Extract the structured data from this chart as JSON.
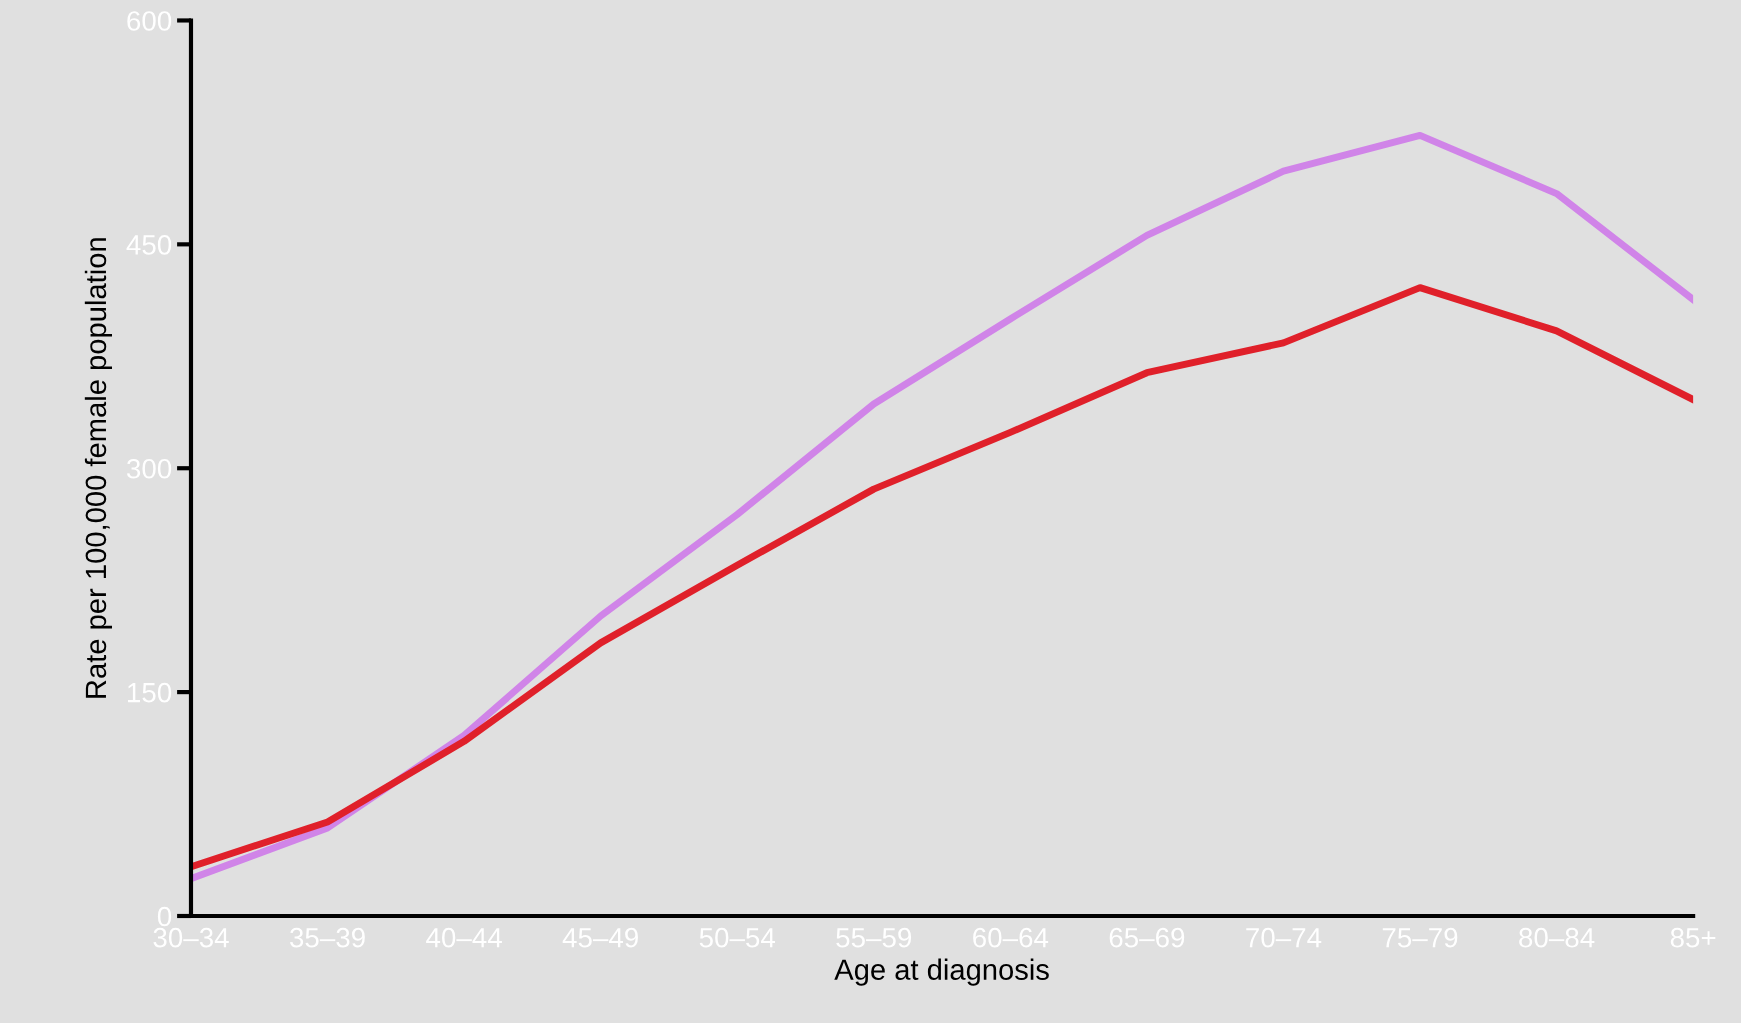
{
  "chart_data": {
    "type": "line",
    "xlabel": "Age at diagnosis",
    "ylabel": "Rate per 100,000 female population",
    "categories": [
      "30–34",
      "35–39",
      "40–44",
      "45–49",
      "50–54",
      "55–59",
      "60–64",
      "65–69",
      "70–74",
      "75–79",
      "80–84",
      "85+"
    ],
    "series": [
      {
        "color": "#d084e8",
        "values": [
          25,
          59,
          121,
          201,
          269,
          343,
          400,
          456,
          499,
          523,
          484,
          413
        ]
      },
      {
        "color": "#e0202a",
        "values": [
          33,
          63,
          117,
          183,
          235,
          286,
          324,
          364,
          384,
          421,
          392,
          346
        ]
      }
    ],
    "ylim": [
      0,
      600
    ],
    "yticks": [
      0,
      150,
      300,
      450,
      600
    ],
    "grid": false,
    "legend": false,
    "marker": "none",
    "line_style": "solid"
  }
}
